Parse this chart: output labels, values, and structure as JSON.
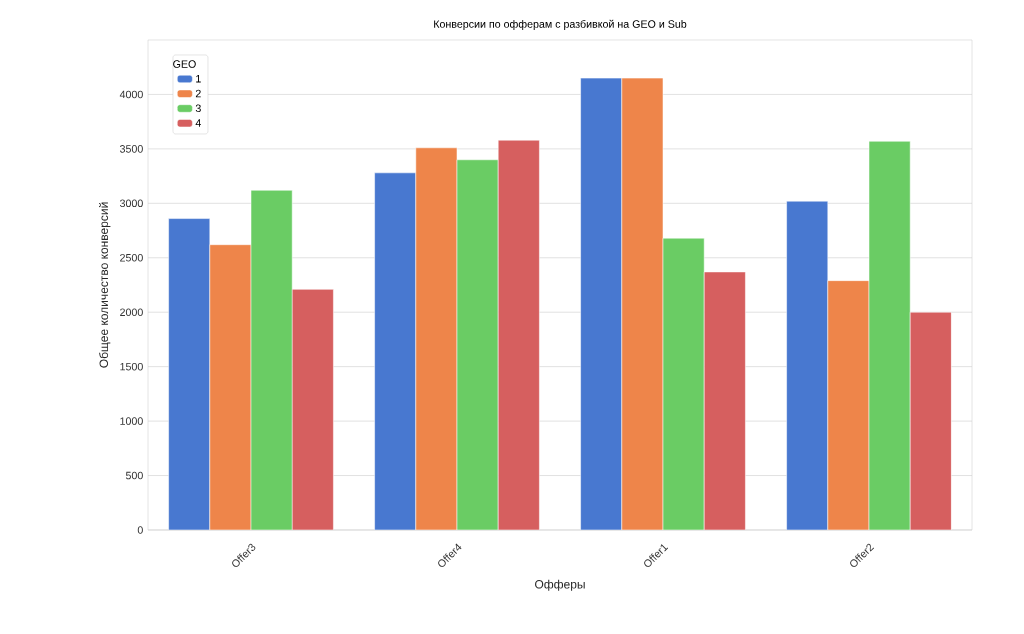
{
  "chart_data": {
    "type": "bar",
    "title": "Конверсии по офферам с разбивкой на GEO и Sub",
    "xlabel": "Офферы",
    "ylabel": "Общее количество конверсий",
    "legend_title": "GEO",
    "categories": [
      "Offer3",
      "Offer4",
      "Offer1",
      "Offer2"
    ],
    "series": [
      {
        "name": "1",
        "color": "#4878d0",
        "values": [
          2860,
          3280,
          4150,
          3020
        ]
      },
      {
        "name": "2",
        "color": "#ee854a",
        "values": [
          2620,
          3510,
          4150,
          2290
        ]
      },
      {
        "name": "3",
        "color": "#6acc64",
        "values": [
          3120,
          3400,
          2680,
          3570
        ]
      },
      {
        "name": "4",
        "color": "#d65f5f",
        "values": [
          2210,
          3580,
          2370,
          2000
        ]
      }
    ],
    "ylim": [
      0,
      4500
    ],
    "yticks": [
      0,
      500,
      1000,
      1500,
      2000,
      2500,
      3000,
      3500,
      4000
    ],
    "grid": "y",
    "legend": "top left"
  }
}
